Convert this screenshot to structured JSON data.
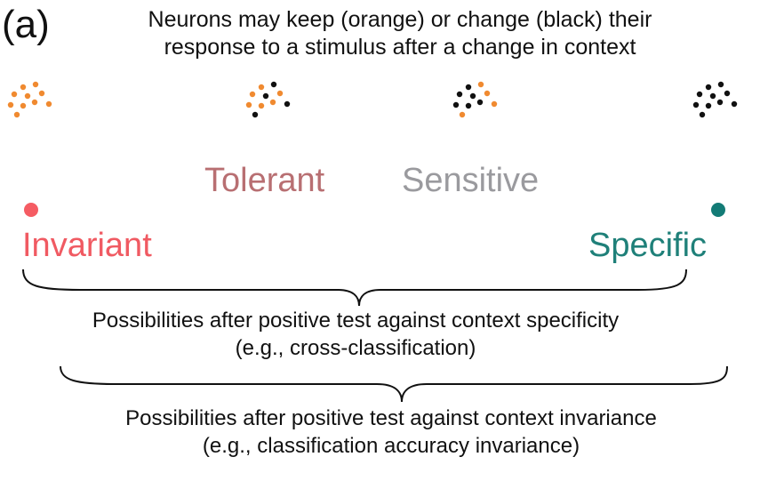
{
  "panel_label": "(a)",
  "title": {
    "line1": "Neurons may keep (orange) or change (black) their",
    "line2": "response to a stimulus after a change in context"
  },
  "colors": {
    "orange": "#f08a30",
    "black": "#111111",
    "invariant": "#f05a62",
    "tolerant": "#b86f72",
    "sensitive": "#9a9a9e",
    "specific": "#1f8079",
    "gradient_start": "#f55c63",
    "gradient_end": "#137b76"
  },
  "neuron_clusters": [
    {
      "name": "all-orange",
      "orange": 10,
      "black": 0
    },
    {
      "name": "mostly-orange",
      "orange": 6,
      "black": 4
    },
    {
      "name": "mostly-black",
      "orange": 4,
      "black": 6
    },
    {
      "name": "all-black",
      "orange": 0,
      "black": 10
    }
  ],
  "spectrum": {
    "left_end": "Invariant",
    "mid_left": "Tolerant",
    "mid_right": "Sensitive",
    "right_end": "Specific"
  },
  "brace1": {
    "line1": "Possibilities after positive test against context specificity",
    "line2": "(e.g., cross-classification)"
  },
  "brace2": {
    "line1": "Possibilities after positive test against context invariance",
    "line2": "(e.g., classification accuracy invariance)"
  }
}
